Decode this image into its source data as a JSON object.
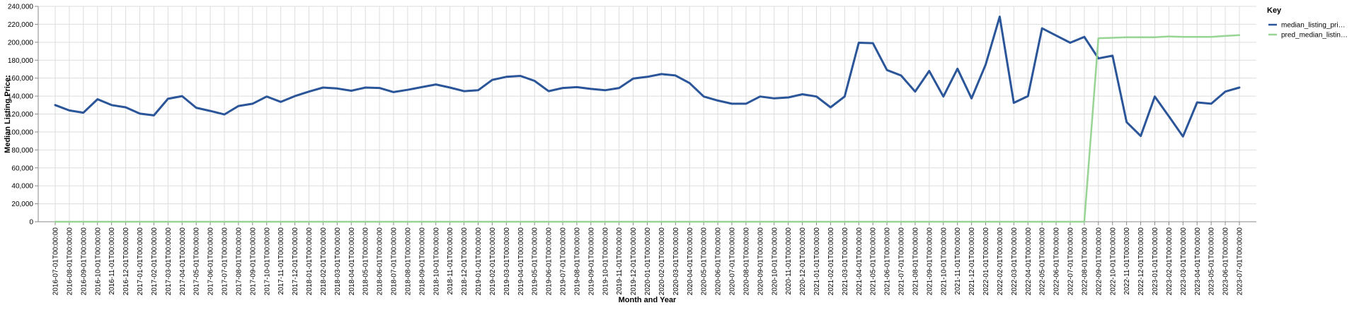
{
  "chart_data": {
    "type": "line",
    "title": "",
    "xlabel": "Month and Year",
    "ylabel": "Median Listing Price:",
    "ylim": [
      0,
      240000
    ],
    "y_ticks": [
      0,
      20000,
      40000,
      60000,
      80000,
      100000,
      120000,
      140000,
      160000,
      180000,
      200000,
      220000,
      240000
    ],
    "y_tick_labels": [
      "0",
      "20,000",
      "40,000",
      "60,000",
      "80,000",
      "100,000",
      "120,000",
      "140,000",
      "160,000",
      "180,000",
      "200,000",
      "220,000",
      "240,000"
    ],
    "grid": true,
    "legend": {
      "title": "Key",
      "placement": "top-right",
      "entries": [
        {
          "label": "median_listing_pri…",
          "series_index": 0
        },
        {
          "label": "pred_median_listin…",
          "series_index": 1
        }
      ]
    },
    "categories": [
      "2016-07-01T00:00:00",
      "2016-08-01T00:00:00",
      "2016-09-01T00:00:00",
      "2016-10-01T00:00:00",
      "2016-11-01T00:00:00",
      "2016-12-01T00:00:00",
      "2017-01-01T00:00:00",
      "2017-02-01T00:00:00",
      "2017-03-01T00:00:00",
      "2017-04-01T00:00:00",
      "2017-05-01T00:00:00",
      "2017-06-01T00:00:00",
      "2017-07-01T00:00:00",
      "2017-08-01T00:00:00",
      "2017-09-01T00:00:00",
      "2017-10-01T00:00:00",
      "2017-11-01T00:00:00",
      "2017-12-01T00:00:00",
      "2018-01-01T00:00:00",
      "2018-02-01T00:00:00",
      "2018-03-01T00:00:00",
      "2018-04-01T00:00:00",
      "2018-05-01T00:00:00",
      "2018-06-01T00:00:00",
      "2018-07-01T00:00:00",
      "2018-08-01T00:00:00",
      "2018-09-01T00:00:00",
      "2018-10-01T00:00:00",
      "2018-11-01T00:00:00",
      "2018-12-01T00:00:00",
      "2019-01-01T00:00:00",
      "2019-02-01T00:00:00",
      "2019-03-01T00:00:00",
      "2019-04-01T00:00:00",
      "2019-05-01T00:00:00",
      "2019-06-01T00:00:00",
      "2019-07-01T00:00:00",
      "2019-08-01T00:00:00",
      "2019-09-01T00:00:00",
      "2019-10-01T00:00:00",
      "2019-11-01T00:00:00",
      "2019-12-01T00:00:00",
      "2020-01-01T00:00:00",
      "2020-02-01T00:00:00",
      "2020-03-01T00:00:00",
      "2020-04-01T00:00:00",
      "2020-05-01T00:00:00",
      "2020-06-01T00:00:00",
      "2020-07-01T00:00:00",
      "2020-08-01T00:00:00",
      "2020-09-01T00:00:00",
      "2020-10-01T00:00:00",
      "2020-11-01T00:00:00",
      "2020-12-01T00:00:00",
      "2021-01-01T00:00:00",
      "2021-02-01T00:00:00",
      "2021-03-01T00:00:00",
      "2021-04-01T00:00:00",
      "2021-05-01T00:00:00",
      "2021-06-01T00:00:00",
      "2021-07-01T00:00:00",
      "2021-08-01T00:00:00",
      "2021-09-01T00:00:00",
      "2021-10-01T00:00:00",
      "2021-11-01T00:00:00",
      "2021-12-01T00:00:00",
      "2022-01-01T00:00:00",
      "2022-02-01T00:00:00",
      "2022-03-01T00:00:00",
      "2022-04-01T00:00:00",
      "2022-05-01T00:00:00",
      "2022-06-01T00:00:00",
      "2022-07-01T00:00:00",
      "2022-08-01T00:00:00",
      "2022-09-01T00:00:00",
      "2022-10-01T00:00:00",
      "2022-11-01T00:00:00",
      "2022-12-01T00:00:00",
      "2023-01-01T00:00:00",
      "2023-02-01T00:00:00",
      "2023-03-01T00:00:00",
      "2023-04-01T00:00:00",
      "2023-05-01T00:00:00",
      "2023-06-01T00:00:00",
      "2023-07-01T00:00:00"
    ],
    "series": [
      {
        "name": "median_listing_pri…",
        "color": "#2a5599",
        "values": [
          130000,
          124000,
          121500,
          136500,
          130000,
          127500,
          120500,
          118500,
          137000,
          140000,
          127000,
          123500,
          119500,
          129000,
          131500,
          139500,
          133500,
          140000,
          145000,
          149500,
          148500,
          146000,
          149500,
          149000,
          144500,
          147000,
          150000,
          153000,
          149500,
          145500,
          146500,
          158000,
          161500,
          162500,
          157000,
          145500,
          149000,
          150000,
          148000,
          146500,
          149000,
          159500,
          161500,
          164500,
          163000,
          154500,
          139500,
          135000,
          131500,
          131500,
          139500,
          137500,
          138500,
          142000,
          139500,
          127500,
          139500,
          199500,
          199000,
          169000,
          163000,
          145000,
          168000,
          139500,
          170500,
          137500,
          175000,
          228500,
          132500,
          140000,
          215500,
          207500,
          199500,
          206000,
          182000,
          185000,
          111000,
          95500,
          139500,
          117500,
          95000,
          133000,
          131500,
          145000,
          149500
        ]
      },
      {
        "name": "pred_median_listin…",
        "color": "#98d494",
        "values": [
          0,
          0,
          0,
          0,
          0,
          0,
          0,
          0,
          0,
          0,
          0,
          0,
          0,
          0,
          0,
          0,
          0,
          0,
          0,
          0,
          0,
          0,
          0,
          0,
          0,
          0,
          0,
          0,
          0,
          0,
          0,
          0,
          0,
          0,
          0,
          0,
          0,
          0,
          0,
          0,
          0,
          0,
          0,
          0,
          0,
          0,
          0,
          0,
          0,
          0,
          0,
          0,
          0,
          0,
          0,
          0,
          0,
          0,
          0,
          0,
          0,
          0,
          0,
          0,
          0,
          0,
          0,
          0,
          0,
          0,
          0,
          0,
          0,
          0,
          204500,
          205000,
          205500,
          205500,
          205500,
          206500,
          206000,
          206000,
          206000,
          207000,
          208000
        ]
      }
    ]
  }
}
